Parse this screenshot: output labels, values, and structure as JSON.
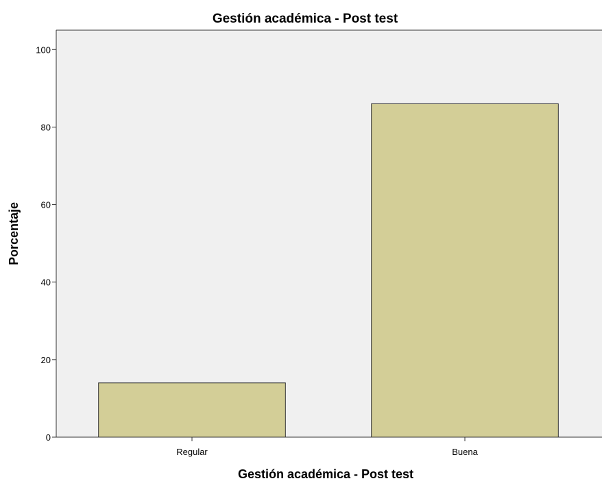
{
  "chart_data": {
    "type": "bar",
    "title": "Gestión académica - Post test",
    "xlabel": "Gestión académica - Post test",
    "ylabel": "Porcentaje",
    "categories": [
      "Regular",
      "Buena"
    ],
    "values": [
      14,
      86
    ],
    "ylim": [
      0,
      105
    ],
    "yticks": [
      0,
      20,
      40,
      60,
      80,
      100
    ],
    "grid": false,
    "legend": "none",
    "colors": {
      "plot_background": "#f0f0f0",
      "bar_fill": "#d3ce97",
      "bar_stroke": "#333333",
      "axis": "#333333"
    }
  }
}
